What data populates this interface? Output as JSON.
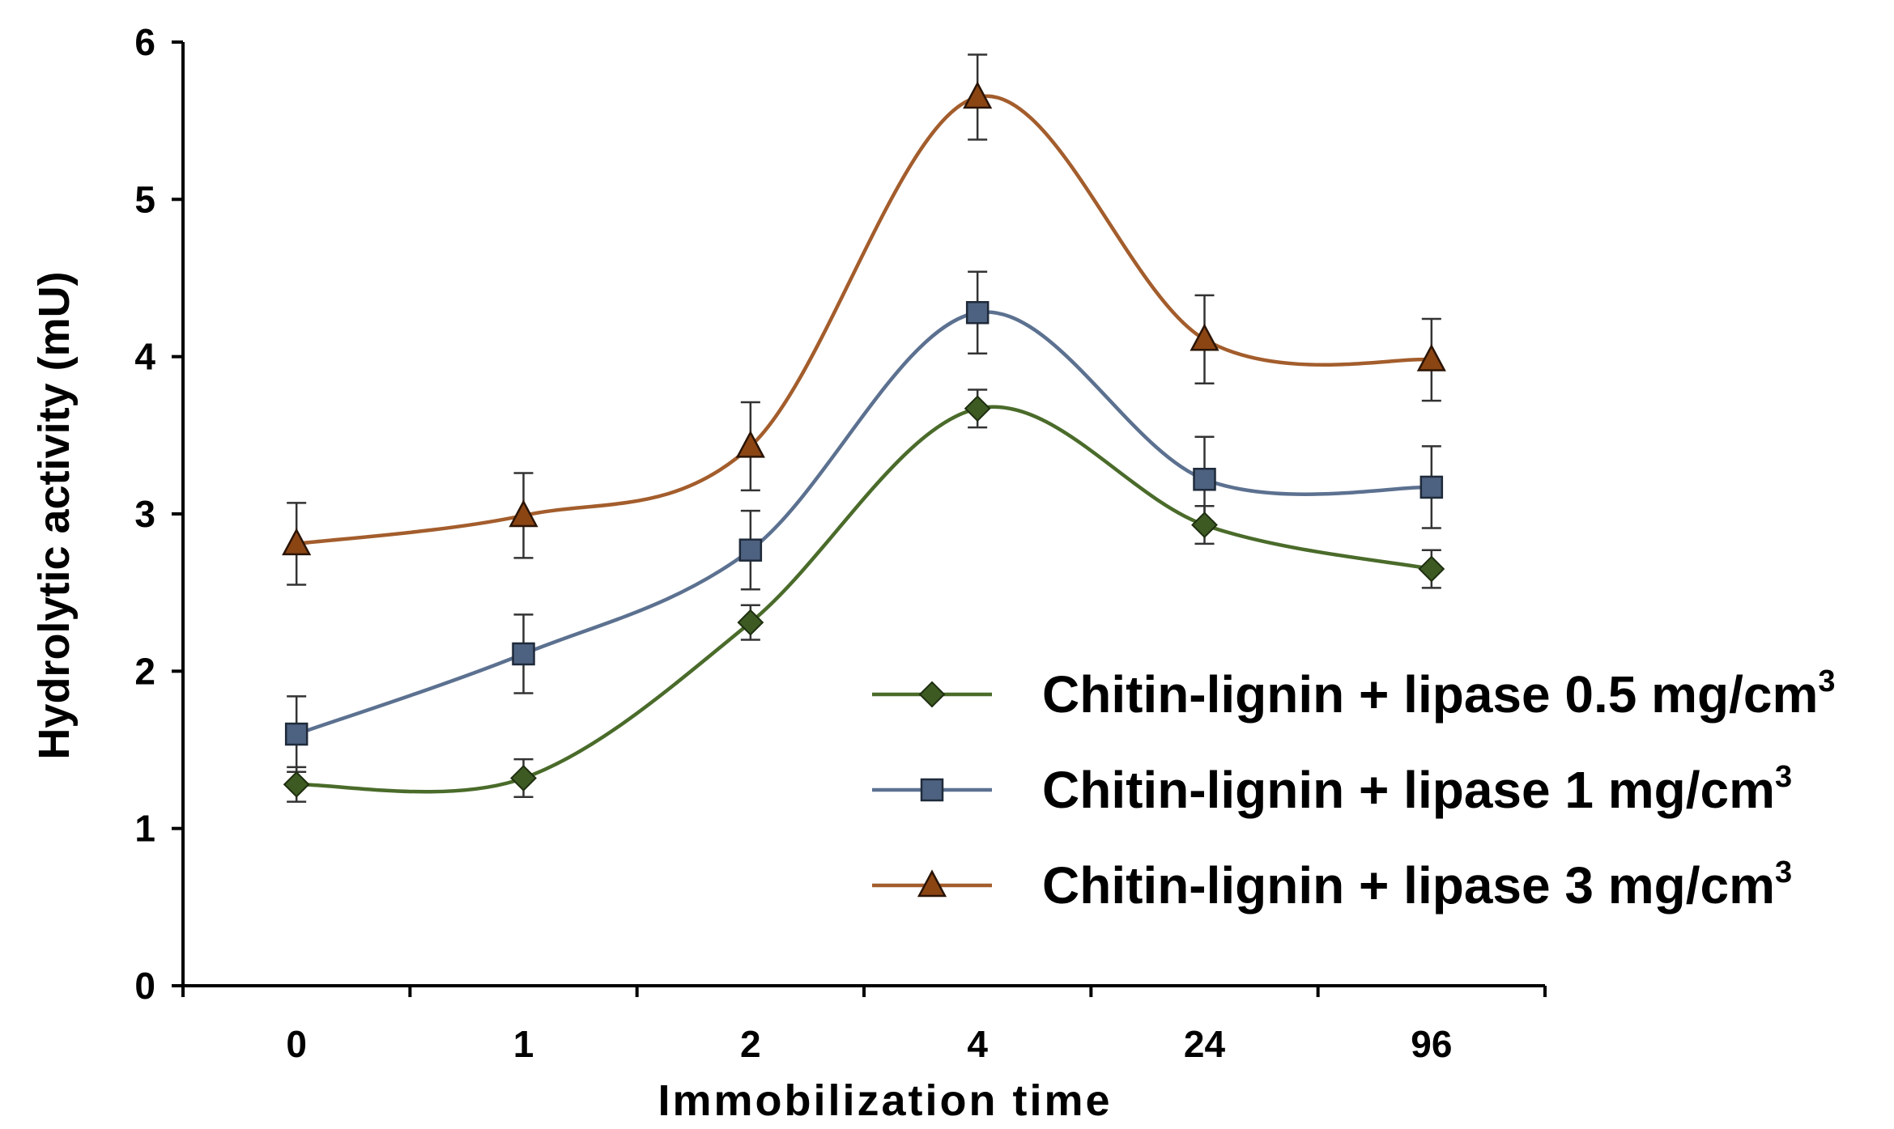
{
  "chart_data": {
    "type": "line",
    "title": "",
    "xlabel": "Immobilization time",
    "ylabel": "Hydrolytic activity (mU)",
    "categories": [
      "0",
      "1",
      "2",
      "4",
      "24",
      "96"
    ],
    "ylim": [
      0,
      6
    ],
    "yticks": [
      "0",
      "1",
      "2",
      "3",
      "4",
      "5",
      "6"
    ],
    "legend_position": "right-center",
    "series": [
      {
        "name": "Chitin-lignin + lipase 0.5 mg/cm",
        "name_superscript": "3",
        "marker": "diamond",
        "color": "#4a6b2a",
        "marker_color": "#3d5a23",
        "values": [
          1.28,
          1.32,
          2.31,
          3.67,
          2.93,
          2.65
        ],
        "errors": [
          0.11,
          0.12,
          0.11,
          0.12,
          0.12,
          0.12
        ]
      },
      {
        "name": "Chitin-lignin + lipase 1 mg/cm",
        "name_superscript": "3",
        "marker": "square",
        "color": "#5c7190",
        "marker_color": "#4d6280",
        "values": [
          1.6,
          2.11,
          2.77,
          4.28,
          3.22,
          3.17
        ],
        "errors": [
          0.24,
          0.25,
          0.25,
          0.26,
          0.27,
          0.26
        ]
      },
      {
        "name": "Chitin-lignin + lipase 3 mg/cm",
        "name_superscript": "3",
        "marker": "triangle",
        "color": "#a35d2c",
        "marker_color": "#8b4513",
        "values": [
          2.81,
          2.99,
          3.43,
          5.65,
          4.11,
          3.98
        ],
        "errors": [
          0.26,
          0.27,
          0.28,
          0.27,
          0.28,
          0.26
        ]
      }
    ]
  }
}
